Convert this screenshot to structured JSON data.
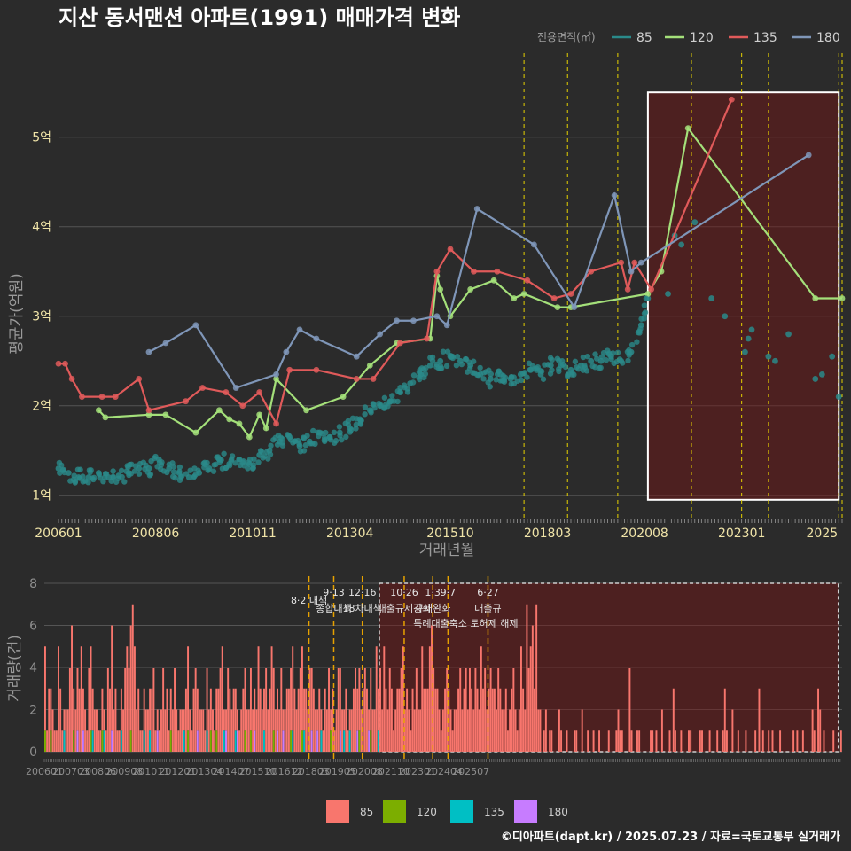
{
  "title": "지산 동서맨션 아파트(1991) 매매가격 변화",
  "credit": "©디아파트(dapt.kr) / 2025.07.23 / 자료=국토교통부 실거래가",
  "colors": {
    "bg": "#2b2b2b",
    "grid": "#555555",
    "s85": "#2a8a8a",
    "s120": "#a4e07a",
    "s135": "#e05a5a",
    "s180": "#7f96b8",
    "bar85": "#f8766d",
    "bar120": "#7cae00",
    "bar135": "#00bfc4",
    "bar180": "#c77cff",
    "policy": "#e6d200",
    "policyBottom": "#e6a100"
  },
  "chart_data": [
    {
      "type": "line",
      "title": "지산 동서맨션 아파트(1991) 매매가격 변화",
      "xlabel": "거래년월",
      "ylabel": "평균가(억원)",
      "x_range": [
        "2006-01",
        "2025-07"
      ],
      "ylim": [
        0.75,
        5.7
      ],
      "y_ticks": [
        {
          "v": 1,
          "label": "1억"
        },
        {
          "v": 2,
          "label": "2억"
        },
        {
          "v": 3,
          "label": "3억"
        },
        {
          "v": 4,
          "label": "4억"
        },
        {
          "v": 5,
          "label": "5억"
        }
      ],
      "x_ticks": [
        "200601",
        "200806",
        "201011",
        "201304",
        "201510",
        "201803",
        "202008",
        "202301",
        "2025"
      ],
      "legend": {
        "title": "전용면적(㎡)",
        "position": "top-right",
        "items": [
          "85",
          "120",
          "135",
          "180"
        ]
      },
      "highlight_box": {
        "x0": "2020-09",
        "x1": "2025-06",
        "y0": 0.95,
        "y1": 5.5
      },
      "policy_dates": [
        "2017-08",
        "2018-09",
        "2019-12",
        "2021-10",
        "2023-01",
        "2023-09",
        "2025-06",
        "2025-07"
      ],
      "series": [
        {
          "name": "85",
          "points": [
            [
              "2006-01",
              1.3
            ],
            [
              "2006-04",
              1.25
            ],
            [
              "2006-07",
              1.2
            ],
            [
              "2006-10",
              1.2
            ],
            [
              "2007-01",
              1.25
            ],
            [
              "2007-04",
              1.2
            ],
            [
              "2007-07",
              1.22
            ],
            [
              "2007-10",
              1.25
            ],
            [
              "2008-01",
              1.3
            ],
            [
              "2008-04",
              1.3
            ],
            [
              "2008-07",
              1.4
            ],
            [
              "2008-10",
              1.3
            ],
            [
              "2009-01",
              1.25
            ],
            [
              "2009-04",
              1.2
            ],
            [
              "2009-07",
              1.25
            ],
            [
              "2009-10",
              1.3
            ],
            [
              "2010-01",
              1.4
            ],
            [
              "2010-04",
              1.35
            ],
            [
              "2010-07",
              1.4
            ],
            [
              "2010-10",
              1.35
            ],
            [
              "2011-01",
              1.45
            ],
            [
              "2011-04",
              1.5
            ],
            [
              "2011-07",
              1.6
            ],
            [
              "2011-10",
              1.65
            ],
            [
              "2012-01",
              1.55
            ],
            [
              "2012-04",
              1.6
            ],
            [
              "2012-07",
              1.7
            ],
            [
              "2012-10",
              1.65
            ],
            [
              "2013-01",
              1.7
            ],
            [
              "2013-04",
              1.75
            ],
            [
              "2013-07",
              1.85
            ],
            [
              "2013-10",
              1.95
            ],
            [
              "2014-01",
              2.0
            ],
            [
              "2014-04",
              2.05
            ],
            [
              "2014-07",
              2.15
            ],
            [
              "2014-10",
              2.25
            ],
            [
              "2015-01",
              2.35
            ],
            [
              "2015-04",
              2.45
            ],
            [
              "2015-07",
              2.5
            ],
            [
              "2015-10",
              2.55
            ],
            [
              "2016-01",
              2.5
            ],
            [
              "2016-04",
              2.45
            ],
            [
              "2016-07",
              2.35
            ],
            [
              "2016-10",
              2.3
            ],
            [
              "2017-01",
              2.35
            ],
            [
              "2017-04",
              2.3
            ],
            [
              "2017-07",
              2.35
            ],
            [
              "2017-10",
              2.4
            ],
            [
              "2018-01",
              2.35
            ],
            [
              "2018-04",
              2.45
            ],
            [
              "2018-07",
              2.45
            ],
            [
              "2018-10",
              2.4
            ],
            [
              "2019-01",
              2.45
            ],
            [
              "2019-04",
              2.5
            ],
            [
              "2019-07",
              2.5
            ],
            [
              "2019-10",
              2.55
            ],
            [
              "2020-01",
              2.5
            ],
            [
              "2020-04",
              2.6
            ],
            [
              "2020-07",
              2.9
            ],
            [
              "2020-09",
              3.2
            ],
            [
              "2021-03",
              3.25
            ],
            [
              "2021-05",
              3.9
            ],
            [
              "2021-07",
              3.8
            ],
            [
              "2021-11",
              4.05
            ],
            [
              "2022-04",
              3.2
            ],
            [
              "2022-08",
              3.0
            ],
            [
              "2023-02",
              2.6
            ],
            [
              "2023-03",
              2.75
            ],
            [
              "2023-04",
              2.85
            ],
            [
              "2023-09",
              2.55
            ],
            [
              "2023-11",
              2.5
            ],
            [
              "2024-03",
              2.8
            ],
            [
              "2024-11",
              2.3
            ],
            [
              "2025-01",
              2.35
            ],
            [
              "2025-04",
              2.55
            ],
            [
              "2025-06",
              2.1
            ]
          ]
        },
        {
          "name": "120",
          "points": [
            [
              "2007-01",
              1.95
            ],
            [
              "2007-03",
              1.87
            ],
            [
              "2008-04",
              1.9
            ],
            [
              "2008-09",
              1.9
            ],
            [
              "2009-06",
              1.7
            ],
            [
              "2010-01",
              1.95
            ],
            [
              "2010-04",
              1.85
            ],
            [
              "2010-07",
              1.8
            ],
            [
              "2010-10",
              1.65
            ],
            [
              "2011-01",
              1.9
            ],
            [
              "2011-03",
              1.75
            ],
            [
              "2011-06",
              2.3
            ],
            [
              "2012-03",
              1.95
            ],
            [
              "2013-02",
              2.1
            ],
            [
              "2013-10",
              2.45
            ],
            [
              "2014-06",
              2.7
            ],
            [
              "2015-04",
              2.75
            ],
            [
              "2015-06",
              3.45
            ],
            [
              "2015-07",
              3.3
            ],
            [
              "2015-10",
              3.0
            ],
            [
              "2016-04",
              3.3
            ],
            [
              "2016-11",
              3.4
            ],
            [
              "2017-05",
              3.2
            ],
            [
              "2017-08",
              3.25
            ],
            [
              "2018-06",
              3.1
            ],
            [
              "2018-10",
              3.1
            ],
            [
              "2020-09",
              3.25
            ],
            [
              "2021-01",
              3.5
            ],
            [
              "2021-09",
              5.1
            ],
            [
              "2024-11",
              3.2
            ],
            [
              "2025-07",
              3.2
            ]
          ]
        },
        {
          "name": "135",
          "points": [
            [
              "2006-01",
              2.47
            ],
            [
              "2006-03",
              2.47
            ],
            [
              "2006-05",
              2.3
            ],
            [
              "2006-08",
              2.1
            ],
            [
              "2007-02",
              2.1
            ],
            [
              "2007-06",
              2.1
            ],
            [
              "2008-01",
              2.3
            ],
            [
              "2008-04",
              1.95
            ],
            [
              "2009-03",
              2.05
            ],
            [
              "2009-08",
              2.2
            ],
            [
              "2010-03",
              2.15
            ],
            [
              "2010-08",
              2.0
            ],
            [
              "2011-01",
              2.15
            ],
            [
              "2011-06",
              1.8
            ],
            [
              "2011-10",
              2.4
            ],
            [
              "2012-06",
              2.4
            ],
            [
              "2013-06",
              2.3
            ],
            [
              "2013-11",
              2.3
            ],
            [
              "2014-07",
              2.7
            ],
            [
              "2015-03",
              2.75
            ],
            [
              "2015-06",
              3.5
            ],
            [
              "2015-10",
              3.75
            ],
            [
              "2016-05",
              3.5
            ],
            [
              "2016-12",
              3.5
            ],
            [
              "2017-09",
              3.4
            ],
            [
              "2018-05",
              3.2
            ],
            [
              "2018-10",
              3.25
            ],
            [
              "2019-04",
              3.5
            ],
            [
              "2020-01",
              3.6
            ],
            [
              "2020-03",
              3.3
            ],
            [
              "2020-05",
              3.6
            ],
            [
              "2020-10",
              3.3
            ],
            [
              "2022-10",
              5.42
            ]
          ]
        },
        {
          "name": "180",
          "points": [
            [
              "2008-04",
              2.6
            ],
            [
              "2008-09",
              2.7
            ],
            [
              "2009-06",
              2.9
            ],
            [
              "2010-06",
              2.2
            ],
            [
              "2011-06",
              2.35
            ],
            [
              "2011-09",
              2.6
            ],
            [
              "2012-01",
              2.85
            ],
            [
              "2012-06",
              2.75
            ],
            [
              "2013-06",
              2.55
            ],
            [
              "2014-01",
              2.8
            ],
            [
              "2014-06",
              2.95
            ],
            [
              "2014-11",
              2.95
            ],
            [
              "2015-06",
              3.0
            ],
            [
              "2015-09",
              2.9
            ],
            [
              "2016-06",
              4.2
            ],
            [
              "2017-11",
              3.8
            ],
            [
              "2018-11",
              3.1
            ],
            [
              "2019-11",
              4.35
            ],
            [
              "2020-04",
              3.5
            ],
            [
              "2020-07",
              3.6
            ],
            [
              "2024-09",
              4.8
            ]
          ]
        }
      ]
    },
    {
      "type": "bar",
      "ylabel": "거래량(건)",
      "ylim": [
        0,
        8
      ],
      "y_ticks": [
        "0",
        "2",
        "4",
        "6",
        "8"
      ],
      "x_ticks": [
        "200601",
        "200703",
        "200806",
        "200908",
        "201011",
        "201201",
        "201304",
        "201407",
        "201510",
        "201612",
        "201803",
        "201905",
        "202008",
        "202110",
        "202301",
        "202404",
        "202507"
      ],
      "legend": {
        "position": "bottom",
        "items": [
          "85",
          "120",
          "135",
          "180"
        ]
      },
      "monthly_totals": [
        5,
        1,
        3,
        3,
        2,
        1,
        1,
        5,
        3,
        1,
        2,
        2,
        2,
        4,
        6,
        3,
        2,
        4,
        3,
        5,
        3,
        2,
        1,
        4,
        5,
        3,
        2,
        2,
        1,
        1,
        3,
        2,
        1,
        4,
        3,
        6,
        2,
        3,
        1,
        1,
        3,
        2,
        4,
        5,
        4,
        6,
        7,
        5,
        2,
        3,
        1,
        1,
        3,
        2,
        2,
        3,
        3,
        4,
        1,
        2,
        1,
        2,
        4,
        2,
        3,
        1,
        3,
        2,
        4,
        2,
        1,
        2,
        2,
        2,
        3,
        5,
        2,
        1,
        3,
        4,
        3,
        2,
        2,
        2,
        1,
        4,
        2,
        3,
        2,
        1,
        3,
        3,
        4,
        5,
        2,
        2,
        4,
        3,
        2,
        3,
        3,
        2,
        1,
        2,
        3,
        4,
        2,
        2,
        4,
        2,
        3,
        2,
        5,
        3,
        2,
        3,
        4,
        2,
        3,
        5,
        4,
        2,
        3,
        2,
        4,
        2,
        2,
        3,
        3,
        4,
        5,
        3,
        2,
        3,
        4,
        5,
        3,
        3,
        2,
        4,
        4,
        3,
        2,
        2,
        3,
        2,
        1,
        3,
        2,
        4,
        2,
        3,
        1,
        2,
        4,
        4,
        2,
        2,
        3,
        1,
        2,
        2,
        3,
        4,
        3,
        4,
        2,
        3,
        4,
        3,
        2,
        4,
        2,
        2,
        5,
        3,
        4,
        2,
        5,
        3,
        2,
        4,
        3,
        1,
        2,
        3,
        3,
        4,
        5,
        2,
        3,
        2,
        1,
        3,
        2,
        4,
        2,
        2,
        5,
        3,
        3,
        3,
        5,
        6,
        4,
        3,
        3,
        2,
        1,
        2,
        3,
        4,
        3,
        2,
        1,
        2,
        2,
        3,
        4,
        2,
        3,
        4,
        2,
        4,
        3,
        2,
        4,
        3,
        2,
        5,
        3,
        4,
        2,
        3,
        4,
        3,
        3,
        2,
        4,
        3,
        2,
        2,
        3,
        1,
        2,
        3,
        4,
        2,
        1,
        2,
        5,
        3,
        2,
        7,
        4,
        5,
        6,
        3,
        7,
        2,
        2,
        0,
        1,
        2,
        0,
        1,
        1,
        0,
        0,
        0,
        2,
        1,
        0,
        0,
        1,
        0,
        0,
        0,
        1,
        1,
        0,
        0,
        2,
        0,
        0,
        1,
        0,
        0,
        1,
        0,
        0,
        1,
        0,
        0,
        0,
        0,
        1,
        0,
        0,
        0,
        1,
        2,
        1,
        1,
        0,
        0,
        0,
        4,
        1,
        0,
        0,
        1,
        1,
        0,
        0,
        0,
        0,
        0,
        1,
        1,
        0,
        1,
        0,
        0,
        2,
        0,
        0,
        0,
        1,
        0,
        3,
        1,
        0,
        0,
        1,
        0,
        0,
        0,
        1,
        1,
        0,
        0,
        0,
        0,
        1,
        1,
        0,
        0,
        0,
        1,
        0,
        0,
        0,
        1,
        0,
        0,
        1,
        3,
        1,
        0,
        0,
        2,
        0,
        0,
        1,
        0,
        0,
        0,
        1,
        0,
        0,
        0,
        0,
        1,
        0,
        3,
        0,
        1,
        0,
        0,
        1,
        0,
        1,
        0,
        0,
        0,
        1,
        0,
        0,
        0,
        0,
        0,
        0,
        1,
        0,
        1,
        0,
        0,
        1,
        0,
        0,
        0,
        0,
        2,
        1,
        0,
        3,
        2,
        0,
        1,
        0,
        0,
        0,
        0,
        1,
        0,
        0,
        0,
        1
      ],
      "policies": [
        {
          "date": "2017-08",
          "label": "8·2 대책"
        },
        {
          "date": "2018-09",
          "label": "9·13",
          "label2": "종합대책"
        },
        {
          "date": "2019-12",
          "label": "12·16",
          "label2": "18차대책"
        },
        {
          "date": "2021-10",
          "label": "10·26",
          "label2": "대출규제강화"
        },
        {
          "date": "2023-01",
          "label": "1·3",
          "label2": "규제완화"
        },
        {
          "date": "2023-09",
          "label": "9·7",
          "label2": "특례대출축소 토허제 해제"
        },
        {
          "date": "2025-06",
          "label": "6·27",
          "label2": "대출규"
        }
      ]
    }
  ]
}
